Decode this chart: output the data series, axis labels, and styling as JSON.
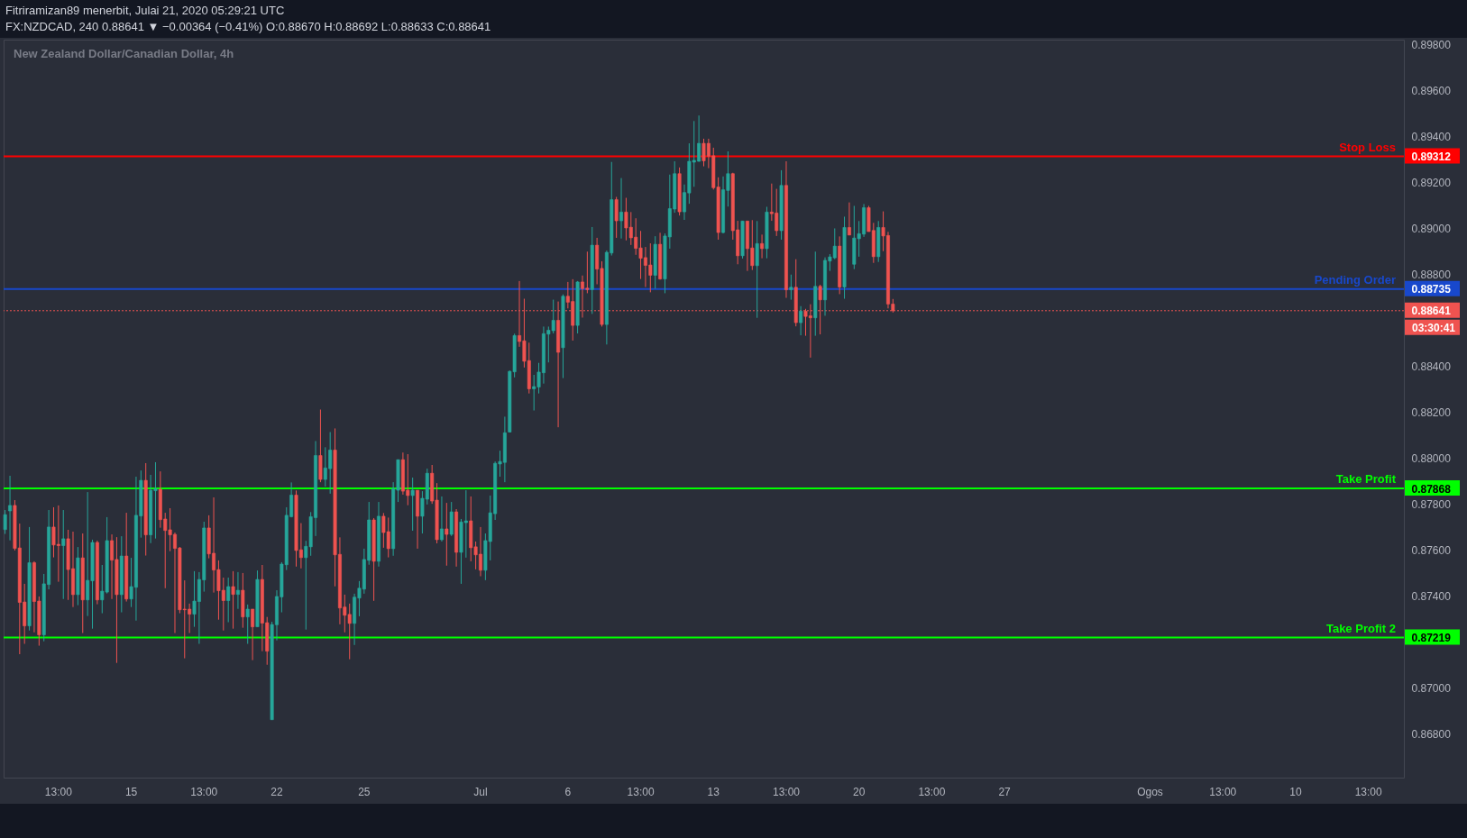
{
  "chart_data": {
    "type": "candlestick",
    "title": "Fitriramizan89 menerbit, Julai 21, 2020 05:29:21 UTC",
    "subtitle": "FX:NZDCAD, 240 0.88641 ▼ −0.00364 (−0.41%) O:0.88670 H:0.88692 L:0.88633 C:0.88641",
    "annotations": [
      "New Zealand Dollar/Canadian Dollar, 4h",
      "03:30:41"
    ],
    "categories": [
      null,
      null,
      null,
      null,
      null,
      null,
      null,
      null,
      null,
      null,
      null,
      "13:00",
      null,
      null,
      null,
      null,
      null,
      null,
      null,
      null,
      null,
      null,
      null,
      null,
      null,
      null,
      "15",
      null,
      null,
      null,
      null,
      null,
      null,
      null,
      null,
      null,
      null,
      null,
      null,
      null,
      null,
      "13:00",
      null,
      null,
      null,
      null,
      null,
      null,
      null,
      null,
      null,
      null,
      null,
      null,
      null,
      null,
      "22",
      null,
      null,
      null,
      null,
      null,
      null,
      null,
      null,
      null,
      null,
      null,
      null,
      null,
      null,
      null,
      null,
      null,
      "25",
      null,
      null,
      null,
      null,
      null,
      null,
      null,
      null,
      null,
      null,
      null,
      null,
      null,
      null,
      null,
      null,
      null,
      null,
      null,
      null,
      null,
      null,
      null,
      "Jul",
      null,
      null,
      null,
      null,
      null,
      null,
      null,
      null,
      null,
      null,
      null,
      null,
      null,
      null,
      null,
      null,
      null,
      "6",
      null,
      null,
      null,
      null,
      null,
      null,
      null,
      null,
      null,
      null,
      null,
      null,
      null,
      null,
      "13:00",
      null,
      null,
      null,
      null,
      null,
      null,
      null,
      null,
      null,
      null,
      null,
      null,
      null,
      null,
      "13",
      null,
      null,
      null,
      null,
      null,
      null,
      null,
      null,
      null,
      null,
      null,
      null,
      null,
      null,
      "13:00",
      null,
      null,
      null,
      null,
      null,
      null,
      null,
      null,
      null,
      null,
      null,
      null,
      null,
      null,
      "20",
      null,
      null,
      null,
      null,
      null,
      null,
      null,
      null,
      null,
      null,
      null,
      null,
      null,
      null,
      "13:00",
      null,
      null,
      null,
      null,
      null,
      null,
      null,
      null,
      null,
      null,
      null,
      null,
      null,
      null,
      "27",
      null,
      null,
      null,
      null,
      null,
      null,
      null,
      null,
      null,
      null,
      null,
      null,
      null,
      null,
      null,
      null,
      null,
      null,
      null,
      null,
      null,
      null,
      null,
      null,
      null,
      null,
      null,
      null,
      null,
      "Ogos",
      null,
      null,
      null,
      null,
      null,
      null,
      null,
      null,
      null,
      null,
      null,
      null,
      null,
      null,
      "13:00",
      null,
      null,
      null,
      null,
      null,
      null,
      null,
      null,
      null,
      null,
      null,
      null,
      null,
      null,
      "10",
      null,
      null,
      null,
      null,
      null,
      null,
      null,
      null,
      null,
      null,
      null,
      null,
      null,
      null,
      "13:00",
      null,
      null,
      null,
      null,
      null,
      null,
      null
    ],
    "ohlc": [
      [
        0.87689,
        0.87774,
        0.8767,
        0.87754
      ],
      [
        0.8777,
        0.87923,
        0.87642,
        0.87794
      ],
      [
        0.87794,
        0.87817,
        0.87598,
        0.87607
      ],
      [
        0.87609,
        0.87715,
        0.87147,
        0.87372
      ],
      [
        0.87374,
        0.87453,
        0.87192,
        0.8727
      ],
      [
        0.8727,
        0.877,
        0.8725,
        0.87545
      ],
      [
        0.87545,
        0.87551,
        0.87242,
        0.87376
      ],
      [
        0.87378,
        0.87398,
        0.87184,
        0.87231
      ],
      [
        0.87231,
        0.87496,
        0.87203,
        0.87453
      ],
      [
        0.8745,
        0.87774,
        0.87429,
        0.877
      ],
      [
        0.877,
        0.87786,
        0.87568,
        0.87622
      ],
      [
        0.87625,
        0.87794,
        0.87462,
        0.87619
      ],
      [
        0.87619,
        0.87774,
        0.87387,
        0.87649
      ],
      [
        0.87649,
        0.87688,
        0.87383,
        0.87515
      ],
      [
        0.87519,
        0.8768,
        0.87352,
        0.87406
      ],
      [
        0.87406,
        0.87613,
        0.8736,
        0.87566
      ],
      [
        0.87566,
        0.87672,
        0.87239,
        0.87383
      ],
      [
        0.87383,
        0.87852,
        0.87313,
        0.87468
      ],
      [
        0.87466,
        0.87645,
        0.87258,
        0.87633
      ],
      [
        0.87633,
        0.87641,
        0.87364,
        0.87383
      ],
      [
        0.87383,
        0.87535,
        0.87325,
        0.87421
      ],
      [
        0.87417,
        0.87743,
        0.87411,
        0.87641
      ],
      [
        0.87641,
        0.87668,
        0.87387,
        0.87556
      ],
      [
        0.87559,
        0.87656,
        0.87109,
        0.87406
      ],
      [
        0.87406,
        0.8766,
        0.87329,
        0.87574
      ],
      [
        0.87574,
        0.87762,
        0.87376,
        0.87387
      ],
      [
        0.87387,
        0.87566,
        0.87352,
        0.87441
      ],
      [
        0.87438,
        0.87919,
        0.87293,
        0.87751
      ],
      [
        0.87748,
        0.87946,
        0.87654,
        0.87903
      ],
      [
        0.87903,
        0.87978,
        0.87576,
        0.87666
      ],
      [
        0.87666,
        0.87927,
        0.8763,
        0.8786
      ],
      [
        0.87858,
        0.87982,
        0.8765,
        0.87867
      ],
      [
        0.87864,
        0.87942,
        0.87697,
        0.87732
      ],
      [
        0.87735,
        0.87762,
        0.87434,
        0.87685
      ],
      [
        0.87688,
        0.87782,
        0.87595,
        0.87666
      ],
      [
        0.87668,
        0.87676,
        0.87239,
        0.87607
      ],
      [
        0.87609,
        0.87613,
        0.87325,
        0.8734
      ],
      [
        0.87343,
        0.87468,
        0.87129,
        0.8734
      ],
      [
        0.87343,
        0.87367,
        0.87239,
        0.87321
      ],
      [
        0.87321,
        0.87508,
        0.87266,
        0.87378
      ],
      [
        0.87376,
        0.87504,
        0.87192,
        0.87472
      ],
      [
        0.8747,
        0.87723,
        0.87419,
        0.87696
      ],
      [
        0.87696,
        0.87751,
        0.87564,
        0.87583
      ],
      [
        0.87586,
        0.87829,
        0.87415,
        0.87513
      ],
      [
        0.87515,
        0.87555,
        0.87297,
        0.87423
      ],
      [
        0.87425,
        0.8748,
        0.8725,
        0.8738
      ],
      [
        0.8738,
        0.8748,
        0.87286,
        0.87441
      ],
      [
        0.87441,
        0.87508,
        0.87258,
        0.87407
      ],
      [
        0.87407,
        0.87504,
        0.87344,
        0.87425
      ],
      [
        0.87425,
        0.875,
        0.87262,
        0.87309
      ],
      [
        0.87309,
        0.87363,
        0.87192,
        0.87343
      ],
      [
        0.87343,
        0.87343,
        0.87121,
        0.87266
      ],
      [
        0.87266,
        0.87511,
        0.87266,
        0.87472
      ],
      [
        0.87472,
        0.87535,
        0.8716,
        0.87282
      ],
      [
        0.87284,
        0.87309,
        0.87101,
        0.8716
      ],
      [
        0.86862,
        0.87288,
        0.86862,
        0.87276
      ],
      [
        0.87275,
        0.87425,
        0.87207,
        0.87398
      ],
      [
        0.87396,
        0.87547,
        0.87329,
        0.87539
      ],
      [
        0.87536,
        0.87786,
        0.87513,
        0.87751
      ],
      [
        0.87745,
        0.87894,
        0.87742,
        0.87839
      ],
      [
        0.87839,
        0.87859,
        0.87528,
        0.87598
      ],
      [
        0.87601,
        0.87717,
        0.8752,
        0.87567
      ],
      [
        0.87567,
        0.8764,
        0.87254,
        0.87616
      ],
      [
        0.87614,
        0.87765,
        0.87575,
        0.87745
      ],
      [
        0.87741,
        0.88074,
        0.87661,
        0.88011
      ],
      [
        0.88011,
        0.88211,
        0.87895,
        0.87907
      ],
      [
        0.87907,
        0.88047,
        0.87876,
        0.87957
      ],
      [
        0.87954,
        0.88113,
        0.87845,
        0.88035
      ],
      [
        0.88035,
        0.88129,
        0.87442,
        0.87579
      ],
      [
        0.87581,
        0.87655,
        0.87277,
        0.87348
      ],
      [
        0.87352,
        0.87406,
        0.87242,
        0.87316
      ],
      [
        0.8732,
        0.87367,
        0.87125,
        0.87281
      ],
      [
        0.87281,
        0.8741,
        0.87187,
        0.87395
      ],
      [
        0.87391,
        0.87465,
        0.87312,
        0.87434
      ],
      [
        0.8743,
        0.87606,
        0.8741,
        0.87559
      ],
      [
        0.87555,
        0.87809,
        0.87536,
        0.87731
      ],
      [
        0.87731,
        0.87739,
        0.87379,
        0.87551
      ],
      [
        0.87551,
        0.87809,
        0.87528,
        0.87747
      ],
      [
        0.87747,
        0.87761,
        0.8761,
        0.87676
      ],
      [
        0.8768,
        0.87741,
        0.87568,
        0.87606
      ],
      [
        0.87606,
        0.87895,
        0.87575,
        0.87868
      ],
      [
        0.8786,
        0.87993,
        0.87809,
        0.87993
      ],
      [
        0.87993,
        0.88024,
        0.87841,
        0.87856
      ],
      [
        0.8786,
        0.88017,
        0.87795,
        0.87837
      ],
      [
        0.87837,
        0.87915,
        0.87684,
        0.8786
      ],
      [
        0.8786,
        0.8786,
        0.87606,
        0.87747
      ],
      [
        0.87747,
        0.87856,
        0.87672,
        0.87825
      ],
      [
        0.87821,
        0.87954,
        0.87798,
        0.87934
      ],
      [
        0.87934,
        0.8797,
        0.87801,
        0.87813
      ],
      [
        0.87817,
        0.87891,
        0.87629,
        0.87645
      ],
      [
        0.87645,
        0.87833,
        0.87637,
        0.87692
      ],
      [
        0.87692,
        0.87805,
        0.87532,
        0.87668
      ],
      [
        0.87668,
        0.87809,
        0.87661,
        0.87766
      ],
      [
        0.87766,
        0.87778,
        0.87528,
        0.8759
      ],
      [
        0.8759,
        0.87735,
        0.87453,
        0.87722
      ],
      [
        0.87719,
        0.8786,
        0.87567,
        0.87727
      ],
      [
        0.87727,
        0.87833,
        0.87551,
        0.8761
      ],
      [
        0.87614,
        0.87637,
        0.87516,
        0.87579
      ],
      [
        0.87582,
        0.877,
        0.87486,
        0.87512
      ],
      [
        0.87512,
        0.87672,
        0.87469,
        0.87641
      ],
      [
        0.87637,
        0.87837,
        0.87555,
        0.87762
      ],
      [
        0.87758,
        0.87985,
        0.87731,
        0.87977
      ],
      [
        0.87974,
        0.88032,
        0.87919,
        0.87985
      ],
      [
        0.87981,
        0.8818,
        0.87895,
        0.8811
      ],
      [
        0.88113,
        0.88381,
        0.88111,
        0.88377
      ],
      [
        0.88375,
        0.88541,
        0.88351,
        0.88533
      ],
      [
        0.88533,
        0.8877,
        0.88484,
        0.88507
      ],
      [
        0.8851,
        0.88693,
        0.88394,
        0.88421
      ],
      [
        0.88424,
        0.88502,
        0.88281,
        0.88301
      ],
      [
        0.88301,
        0.88362,
        0.88207,
        0.88311
      ],
      [
        0.88309,
        0.88414,
        0.88281,
        0.88374
      ],
      [
        0.88371,
        0.88572,
        0.88324,
        0.88541
      ],
      [
        0.88539,
        0.88572,
        0.88416,
        0.88556
      ],
      [
        0.88554,
        0.88689,
        0.88542,
        0.88599
      ],
      [
        0.88599,
        0.88681,
        0.88134,
        0.8846
      ],
      [
        0.8848,
        0.88712,
        0.88348,
        0.88704
      ],
      [
        0.88704,
        0.88766,
        0.88651,
        0.88678
      ],
      [
        0.88681,
        0.88778,
        0.88511,
        0.88577
      ],
      [
        0.88577,
        0.8877,
        0.88542,
        0.88766
      ],
      [
        0.88766,
        0.88794,
        0.88611,
        0.88737
      ],
      [
        0.88739,
        0.88898,
        0.88717,
        0.88733
      ],
      [
        0.88733,
        0.89005,
        0.88627,
        0.88926
      ],
      [
        0.88926,
        0.88958,
        0.88756,
        0.88822
      ],
      [
        0.88825,
        0.88856,
        0.88572,
        0.88581
      ],
      [
        0.88581,
        0.88903,
        0.88494,
        0.88895
      ],
      [
        0.88892,
        0.89288,
        0.88881,
        0.89124
      ],
      [
        0.89124,
        0.89136,
        0.88958,
        0.89032
      ],
      [
        0.89032,
        0.89218,
        0.88955,
        0.8907
      ],
      [
        0.8907,
        0.89132,
        0.88947,
        0.89001
      ],
      [
        0.89004,
        0.8907,
        0.88927,
        0.88958
      ],
      [
        0.88961,
        0.89043,
        0.88884,
        0.88912
      ],
      [
        0.88914,
        0.88988,
        0.88779,
        0.88869
      ],
      [
        0.88872,
        0.88918,
        0.88744,
        0.88838
      ],
      [
        0.8884,
        0.88934,
        0.88721,
        0.88795
      ],
      [
        0.88795,
        0.88965,
        0.88737,
        0.8893
      ],
      [
        0.8893,
        0.8898,
        0.88776,
        0.88779
      ],
      [
        0.88779,
        0.88977,
        0.88717,
        0.88966
      ],
      [
        0.88962,
        0.89233,
        0.88911,
        0.89085
      ],
      [
        0.89083,
        0.89291,
        0.89067,
        0.89237
      ],
      [
        0.89237,
        0.89264,
        0.89055,
        0.89071
      ],
      [
        0.89071,
        0.8919,
        0.89036,
        0.89155
      ],
      [
        0.89153,
        0.89369,
        0.89106,
        0.89291
      ],
      [
        0.89287,
        0.89466,
        0.8918,
        0.89295
      ],
      [
        0.89291,
        0.8949,
        0.89289,
        0.89369
      ],
      [
        0.89369,
        0.89389,
        0.89269,
        0.89293
      ],
      [
        0.89369,
        0.89389,
        0.89261,
        0.89312
      ],
      [
        0.89315,
        0.8935,
        0.89168,
        0.89176
      ],
      [
        0.89179,
        0.89221,
        0.8895,
        0.88981
      ],
      [
        0.88981,
        0.89225,
        0.88977,
        0.89167
      ],
      [
        0.89164,
        0.89334,
        0.89094,
        0.89237
      ],
      [
        0.89237,
        0.89241,
        0.8895,
        0.88989
      ],
      [
        0.88993,
        0.89032,
        0.88843,
        0.8888
      ],
      [
        0.8888,
        0.89032,
        0.88868,
        0.89031
      ],
      [
        0.89031,
        0.89032,
        0.88814,
        0.88911
      ],
      [
        0.88914,
        0.89035,
        0.88818,
        0.88837
      ],
      [
        0.88837,
        0.89031,
        0.8861,
        0.88933
      ],
      [
        0.88933,
        0.88972,
        0.88869,
        0.88911
      ],
      [
        0.88911,
        0.89093,
        0.88869,
        0.8907
      ],
      [
        0.8907,
        0.89194,
        0.89032,
        0.89063
      ],
      [
        0.89066,
        0.89171,
        0.88966,
        0.88989
      ],
      [
        0.88989,
        0.89252,
        0.8895,
        0.89186
      ],
      [
        0.89186,
        0.89291,
        0.88697,
        0.88732
      ],
      [
        0.88732,
        0.88798,
        0.88689,
        0.88743
      ],
      [
        0.88743,
        0.88865,
        0.88573,
        0.88589
      ],
      [
        0.88589,
        0.88661,
        0.88534,
        0.88639
      ],
      [
        0.88639,
        0.88649,
        0.88532,
        0.88616
      ],
      [
        0.88619,
        0.88669,
        0.88437,
        0.8861
      ],
      [
        0.8861,
        0.88898,
        0.88532,
        0.88747
      ],
      [
        0.88747,
        0.88754,
        0.88538,
        0.88688
      ],
      [
        0.88688,
        0.88873,
        0.88619,
        0.8886
      ],
      [
        0.88857,
        0.88887,
        0.88814,
        0.88875
      ],
      [
        0.88871,
        0.88999,
        0.88865,
        0.88922
      ],
      [
        0.88922,
        0.88964,
        0.88713,
        0.88744
      ],
      [
        0.88744,
        0.8905,
        0.88693,
        0.89003
      ],
      [
        0.89003,
        0.89112,
        0.8897,
        0.8897
      ],
      [
        0.88843,
        0.89097,
        0.88822,
        0.88957
      ],
      [
        0.88954,
        0.89031,
        0.88876,
        0.88976
      ],
      [
        0.88974,
        0.89105,
        0.88962,
        0.89089
      ],
      [
        0.89089,
        0.89097,
        0.88985,
        0.88985
      ],
      [
        0.8899,
        0.89023,
        0.88849,
        0.88876
      ],
      [
        0.88876,
        0.89031,
        0.88853,
        0.89003
      ],
      [
        0.89003,
        0.89073,
        0.889,
        0.88966
      ],
      [
        0.88968,
        0.88984,
        0.88651,
        0.8867
      ],
      [
        0.8867,
        0.88692,
        0.88633,
        0.88641
      ],
      null,
      null,
      null,
      null,
      null,
      null,
      null,
      null,
      null,
      null,
      null,
      null,
      null,
      null,
      null,
      null,
      null,
      null,
      null,
      null,
      null,
      null,
      null,
      null,
      null,
      null,
      null,
      null,
      null,
      null,
      null,
      null,
      null,
      null,
      null,
      null,
      null,
      null,
      null,
      null,
      null,
      null,
      null,
      null,
      null,
      null,
      null,
      null,
      null,
      null,
      null,
      null,
      null,
      null,
      null,
      null,
      null,
      null,
      null,
      null,
      null,
      null,
      null,
      null,
      null,
      null,
      null,
      null,
      null,
      null,
      null,
      null,
      null,
      null,
      null,
      null,
      null,
      null,
      null,
      null,
      null,
      null,
      null,
      null,
      null,
      null,
      null,
      null,
      null,
      null,
      null,
      null,
      null,
      null,
      null,
      null,
      null,
      null,
      null,
      null,
      null,
      null,
      null,
      null,
      null
    ],
    "colors": [
      "#26a69a",
      "#26a69a",
      "#ef5350",
      "#ef5350",
      "#ef5350",
      "#26a69a",
      "#ef5350",
      "#ef5350",
      "#26a69a",
      "#26a69a",
      "#ef5350",
      "#ef5350",
      "#26a69a",
      "#ef5350",
      "#ef5350",
      "#26a69a",
      "#ef5350",
      "#26a69a",
      "#26a69a",
      "#ef5350",
      "#26a69a",
      "#26a69a",
      "#ef5350",
      "#ef5350",
      "#26a69a",
      "#ef5350",
      "#26a69a",
      "#26a69a",
      "#26a69a",
      "#ef5350",
      "#26a69a",
      "#26a69a",
      "#ef5350",
      "#ef5350",
      "#ef5350",
      "#ef5350",
      "#ef5350",
      "#ef5350",
      "#ef5350",
      "#26a69a",
      "#26a69a",
      "#26a69a",
      "#ef5350",
      "#ef5350",
      "#ef5350",
      "#ef5350",
      "#26a69a",
      "#ef5350",
      "#26a69a",
      "#ef5350",
      "#26a69a",
      "#ef5350",
      "#26a69a",
      "#ef5350",
      "#ef5350",
      "#26a69a",
      "#26a69a",
      "#26a69a",
      "#26a69a",
      "#26a69a",
      "#ef5350",
      "#ef5350",
      "#26a69a",
      "#26a69a",
      "#26a69a",
      "#ef5350",
      "#26a69a",
      "#26a69a",
      "#ef5350",
      "#ef5350",
      "#ef5350",
      "#ef5350",
      "#26a69a",
      "#26a69a",
      "#26a69a",
      "#26a69a",
      "#ef5350",
      "#26a69a",
      "#ef5350",
      "#ef5350",
      "#26a69a",
      "#26a69a",
      "#ef5350",
      "#ef5350",
      "#26a69a",
      "#ef5350",
      "#26a69a",
      "#26a69a",
      "#ef5350",
      "#ef5350",
      "#26a69a",
      "#ef5350",
      "#26a69a",
      "#ef5350",
      "#26a69a",
      "#26a69a",
      "#ef5350",
      "#ef5350",
      "#ef5350",
      "#26a69a",
      "#26a69a",
      "#26a69a",
      "#26a69a",
      "#26a69a",
      "#26a69a",
      "#26a69a",
      "#ef5350",
      "#ef5350",
      "#ef5350",
      "#26a69a",
      "#26a69a",
      "#26a69a",
      "#26a69a",
      "#26a69a",
      "#ef5350",
      "#26a69a",
      "#ef5350",
      "#ef5350",
      "#26a69a",
      "#ef5350",
      "#ef5350",
      "#26a69a",
      "#ef5350",
      "#ef5350",
      "#26a69a",
      "#26a69a",
      "#ef5350",
      "#26a69a",
      "#ef5350",
      "#ef5350",
      "#ef5350",
      "#ef5350",
      "#ef5350",
      "#ef5350",
      "#26a69a",
      "#ef5350",
      "#26a69a",
      "#26a69a",
      "#26a69a",
      "#ef5350",
      "#26a69a",
      "#26a69a",
      "#26a69a",
      "#26a69a",
      "#ef5350",
      "#ef5350",
      "#ef5350",
      "#ef5350",
      "#26a69a",
      "#26a69a",
      "#ef5350",
      "#ef5350",
      "#26a69a",
      "#ef5350",
      "#ef5350",
      "#26a69a",
      "#ef5350",
      "#26a69a",
      "#ef5350",
      "#ef5350",
      "#26a69a",
      "#ef5350",
      "#26a69a",
      "#ef5350",
      "#26a69a",
      "#ef5350",
      "#ef5350",
      "#26a69a",
      "#ef5350",
      "#26a69a",
      "#26a69a",
      "#26a69a",
      "#ef5350",
      "#26a69a",
      "#ef5350",
      "#26a69a",
      "#26a69a",
      "#26a69a",
      "#ef5350",
      "#ef5350",
      "#26a69a",
      "#ef5350",
      "#ef5350",
      "#ef5350",
      null,
      null,
      null,
      null,
      null,
      null,
      null,
      null,
      null,
      null,
      null,
      null,
      null,
      null,
      null,
      null,
      null,
      null,
      null,
      null,
      null,
      null,
      null,
      null,
      null,
      null,
      null,
      null,
      null,
      null,
      null,
      null,
      null,
      null,
      null,
      null,
      null,
      null,
      null,
      null,
      null,
      null,
      null,
      null,
      null,
      null,
      null,
      null,
      null,
      null,
      null,
      null,
      null,
      null,
      null,
      null,
      null,
      null,
      null,
      null,
      null,
      null,
      null,
      null,
      null,
      null,
      null,
      null,
      null,
      null,
      null,
      null,
      null,
      null,
      null,
      null,
      null,
      null,
      null,
      null,
      null,
      null,
      null,
      null,
      null,
      null,
      null,
      null,
      null,
      null,
      null,
      null,
      null,
      null,
      null,
      null,
      null,
      null,
      null,
      null,
      null,
      null,
      null,
      null,
      null
    ],
    "ylim": [
      0.8661,
      0.8982
    ],
    "yticks": [
      {
        "value": 0.868,
        "label": "0.86800"
      },
      {
        "value": 0.87,
        "label": "0.87000"
      },
      0.87219,
      {
        "value": 0.874,
        "label": "0.87400"
      },
      {
        "value": 0.876,
        "label": "0.87600"
      },
      {
        "value": 0.878,
        "label": "0.87800"
      },
      0.87868,
      {
        "value": 0.88,
        "label": "0.88000"
      },
      {
        "value": 0.882,
        "label": "0.88200"
      },
      {
        "value": 0.884,
        "label": "0.88400"
      },
      0.88641,
      0.88735,
      {
        "value": 0.888,
        "label": "0.88800"
      },
      {
        "value": 0.89,
        "label": "0.89000"
      },
      {
        "value": 0.892,
        "label": "0.89200"
      },
      0.89312,
      {
        "value": 0.894,
        "label": "0.89400"
      },
      {
        "value": 0.896,
        "label": "0.89600"
      },
      {
        "value": 0.898,
        "label": "0.89800"
      }
    ],
    "ref_lines": [
      {
        "axis": "y",
        "value": 0.89312,
        "label": "Stop Loss",
        "color": "#ff0000"
      },
      {
        "axis": "y",
        "value": 0.88735,
        "label": "Pending Order",
        "color": "#1848cc"
      },
      {
        "axis": "y",
        "value": 0.88641,
        "color": "#ef5350",
        "line_style": "dotted"
      },
      {
        "axis": "y",
        "value": 0.87868,
        "label": "Take Profit",
        "color": "#00ff00"
      },
      {
        "axis": "y",
        "value": 0.87219,
        "label": "Take Profit 2",
        "color": "#00ff00"
      }
    ],
    "grid": false
  }
}
